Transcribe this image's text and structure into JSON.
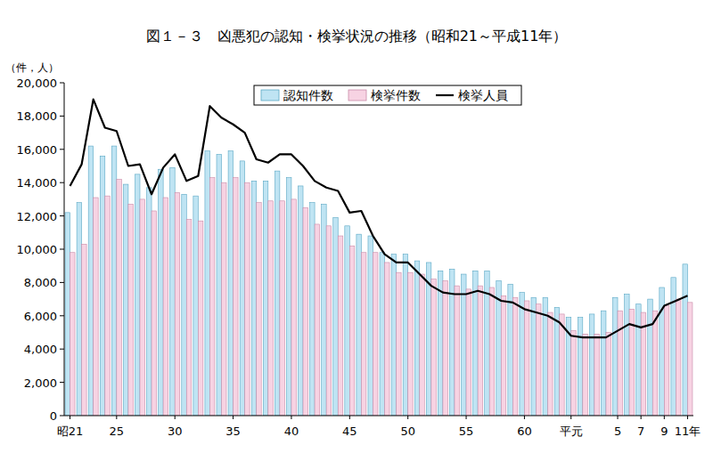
{
  "chart_data": {
    "type": "bar",
    "title": "図１－３　凶悪犯の認知・検挙状況の推移（昭和21～平成11年）",
    "y_label": "（件，人）",
    "categories": [
      "昭21",
      null,
      null,
      null,
      "25",
      null,
      null,
      null,
      null,
      "30",
      null,
      null,
      null,
      null,
      "35",
      null,
      null,
      null,
      null,
      "40",
      null,
      null,
      null,
      null,
      "45",
      null,
      null,
      null,
      null,
      "50",
      null,
      null,
      null,
      null,
      "55",
      null,
      null,
      null,
      null,
      "60",
      null,
      null,
      null,
      "平元",
      null,
      null,
      null,
      "5",
      null,
      "7",
      null,
      "9",
      null,
      "11年"
    ],
    "series": [
      {
        "name": "認知件数",
        "type": "bar",
        "color": "#bfe4f3",
        "values": [
          12200,
          12800,
          16200,
          15600,
          16200,
          13900,
          14500,
          13700,
          14800,
          14900,
          13300,
          13200,
          15900,
          15700,
          15900,
          15300,
          14100,
          14100,
          14700,
          14300,
          13800,
          12800,
          12700,
          11900,
          11400,
          10900,
          10800,
          9800,
          9700,
          9700,
          9300,
          9200,
          8700,
          8800,
          8500,
          8700,
          8700,
          8100,
          7900,
          7400,
          7100,
          7100,
          6500,
          5900,
          5900,
          6100,
          6300,
          7100,
          7300,
          6700,
          7000,
          7700,
          8300,
          9100
        ]
      },
      {
        "name": "検挙件数",
        "type": "bar",
        "color": "#f7d3e3",
        "values": [
          9800,
          10300,
          13100,
          13200,
          14200,
          12700,
          13000,
          12300,
          13100,
          13400,
          11800,
          11700,
          14300,
          14000,
          14300,
          14000,
          12800,
          12900,
          12900,
          13000,
          12500,
          11500,
          11400,
          10800,
          10200,
          9800,
          9800,
          9200,
          8600,
          8600,
          8500,
          8200,
          8100,
          7800,
          7600,
          7800,
          7700,
          7200,
          7100,
          6900,
          6700,
          6200,
          6100,
          5100,
          4900,
          4900,
          5000,
          6300,
          6400,
          6200,
          6300,
          6600,
          7000,
          6800
        ]
      },
      {
        "name": "検挙人員",
        "type": "line",
        "color": "#000000",
        "values": [
          13800,
          15100,
          19000,
          17300,
          17100,
          15000,
          15100,
          13300,
          14900,
          15700,
          14100,
          14400,
          18600,
          17900,
          17500,
          17000,
          15400,
          15200,
          15700,
          15700,
          15000,
          14100,
          13700,
          13500,
          12200,
          12300,
          10800,
          9700,
          9200,
          9200,
          8500,
          7800,
          7400,
          7300,
          7300,
          7500,
          7300,
          6900,
          6800,
          6400,
          6200,
          6000,
          5600,
          4800,
          4700,
          4700,
          4700,
          5100,
          5500,
          5300,
          5500,
          6600,
          6900,
          7200
        ]
      }
    ],
    "ylim": [
      0,
      20000
    ],
    "yticks": [
      0,
      {
        "value": 2000,
        "label": "2,000"
      },
      {
        "value": 4000,
        "label": "4,000"
      },
      {
        "value": 6000,
        "label": "6,000"
      },
      {
        "value": 8000,
        "label": "8,000"
      },
      {
        "value": 10000,
        "label": "10,000"
      },
      {
        "value": 12000,
        "label": "12,000"
      },
      {
        "value": 14000,
        "label": "14,000"
      },
      {
        "value": 16000,
        "label": "16,000"
      },
      {
        "value": 18000,
        "label": "18,000"
      },
      {
        "value": 20000,
        "label": "20,000"
      }
    ],
    "grid": false,
    "legend": "top"
  }
}
